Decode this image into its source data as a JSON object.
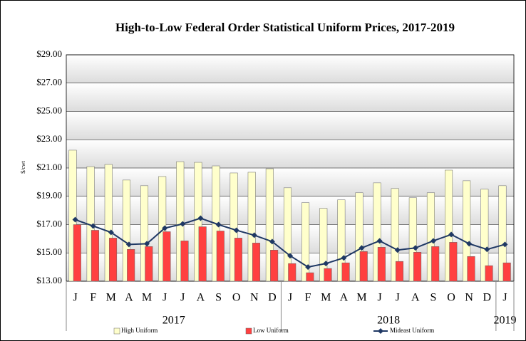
{
  "chart_data": {
    "type": "bar_line",
    "title": "High-to-Low Federal Order Statistical Uniform Prices, 2017-2019",
    "y_label": "$/cwt",
    "categories": [
      "J",
      "F",
      "M",
      "A",
      "M",
      "J",
      "J",
      "A",
      "S",
      "O",
      "N",
      "D",
      "J",
      "F",
      "M",
      "A",
      "M",
      "J",
      "J",
      "A",
      "S",
      "O",
      "N",
      "D",
      "J"
    ],
    "groups": [
      {
        "label": "2017",
        "span": 12
      },
      {
        "label": "2018",
        "span": 12
      },
      {
        "label": "2019",
        "span": 1
      }
    ],
    "series": [
      {
        "name": "High Uniform",
        "type": "bar",
        "color": "#ffffcc",
        "values": [
          22.26,
          21.1,
          21.25,
          20.15,
          19.75,
          20.4,
          21.45,
          21.4,
          21.15,
          20.65,
          20.7,
          20.95,
          19.6,
          18.55,
          18.15,
          18.75,
          19.25,
          19.95,
          19.55,
          18.9,
          19.25,
          20.85,
          20.1,
          19.5,
          19.75
        ]
      },
      {
        "name": "Low Uniform",
        "type": "bar",
        "color": "#ff4040",
        "values": [
          17.0,
          16.6,
          16.05,
          15.25,
          15.45,
          16.5,
          15.85,
          16.85,
          16.55,
          16.05,
          15.7,
          15.2,
          14.25,
          13.6,
          13.9,
          14.3,
          15.1,
          15.4,
          14.4,
          15.05,
          15.45,
          15.75,
          14.75,
          14.1,
          14.3
        ]
      },
      {
        "name": "Mideast Uniform",
        "type": "line",
        "color": "#1f3864",
        "values": [
          17.35,
          16.9,
          16.45,
          15.6,
          15.65,
          16.75,
          17.05,
          17.45,
          17.0,
          16.6,
          16.25,
          15.8,
          14.8,
          14.0,
          14.25,
          14.65,
          15.35,
          15.85,
          15.2,
          15.35,
          15.85,
          16.3,
          15.65,
          15.25,
          15.6
        ]
      }
    ],
    "ylim": [
      13,
      29
    ],
    "yticks": [
      {
        "value": 13,
        "label": "$13.00"
      },
      {
        "value": 15,
        "label": "$15.00"
      },
      {
        "value": 17,
        "label": "$17.00"
      },
      {
        "value": 19,
        "label": "$19.00"
      },
      {
        "value": 21,
        "label": "$21.00"
      },
      {
        "value": 23,
        "label": "$23.00"
      },
      {
        "value": 25,
        "label": "$25.00"
      },
      {
        "value": 27,
        "label": "$27.00"
      },
      {
        "value": 29,
        "label": "$29.00"
      }
    ],
    "grid": true,
    "legend": "bottom"
  }
}
